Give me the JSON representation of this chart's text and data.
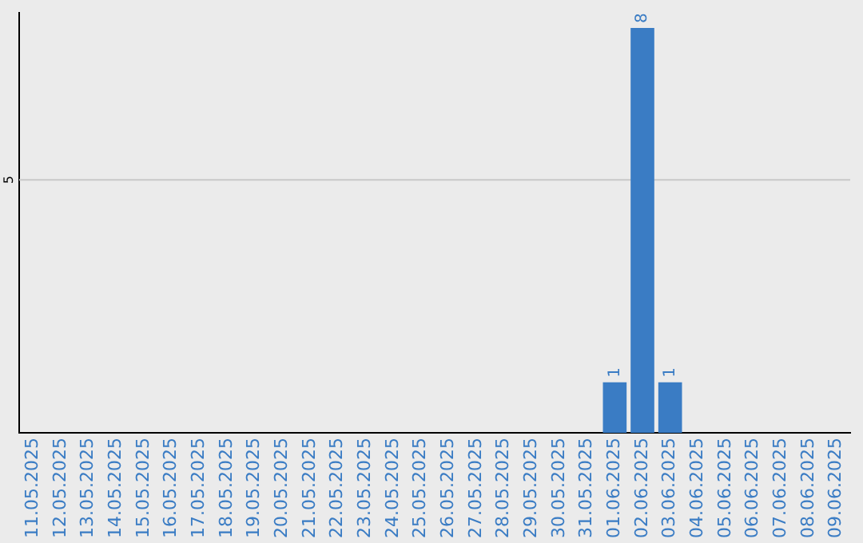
{
  "chart_data": {
    "type": "bar",
    "categories": [
      "11.05.2025",
      "12.05.2025",
      "13.05.2025",
      "14.05.2025",
      "15.05.2025",
      "16.05.2025",
      "17.05.2025",
      "18.05.2025",
      "19.05.2025",
      "20.05.2025",
      "21.05.2025",
      "22.05.2025",
      "23.05.2025",
      "24.05.2025",
      "25.05.2025",
      "26.05.2025",
      "27.05.2025",
      "28.05.2025",
      "29.05.2025",
      "30.05.2025",
      "31.05.2025",
      "01.06.2025",
      "02.06.2025",
      "03.06.2025",
      "04.06.2025",
      "05.06.2025",
      "06.06.2025",
      "07.06.2025",
      "08.06.2025",
      "09.06.2025"
    ],
    "values": [
      null,
      null,
      null,
      null,
      null,
      null,
      null,
      null,
      null,
      null,
      null,
      null,
      null,
      null,
      null,
      null,
      null,
      null,
      null,
      null,
      null,
      1,
      8,
      1,
      null,
      null,
      null,
      null,
      null,
      null
    ],
    "data_labels": true,
    "color": "#3a7cc4",
    "ylim": [
      0,
      8.3
    ],
    "ref_lines": [
      {
        "axis": "y",
        "value": 5,
        "label": "5",
        "color": "#c8c8c8"
      }
    ]
  }
}
